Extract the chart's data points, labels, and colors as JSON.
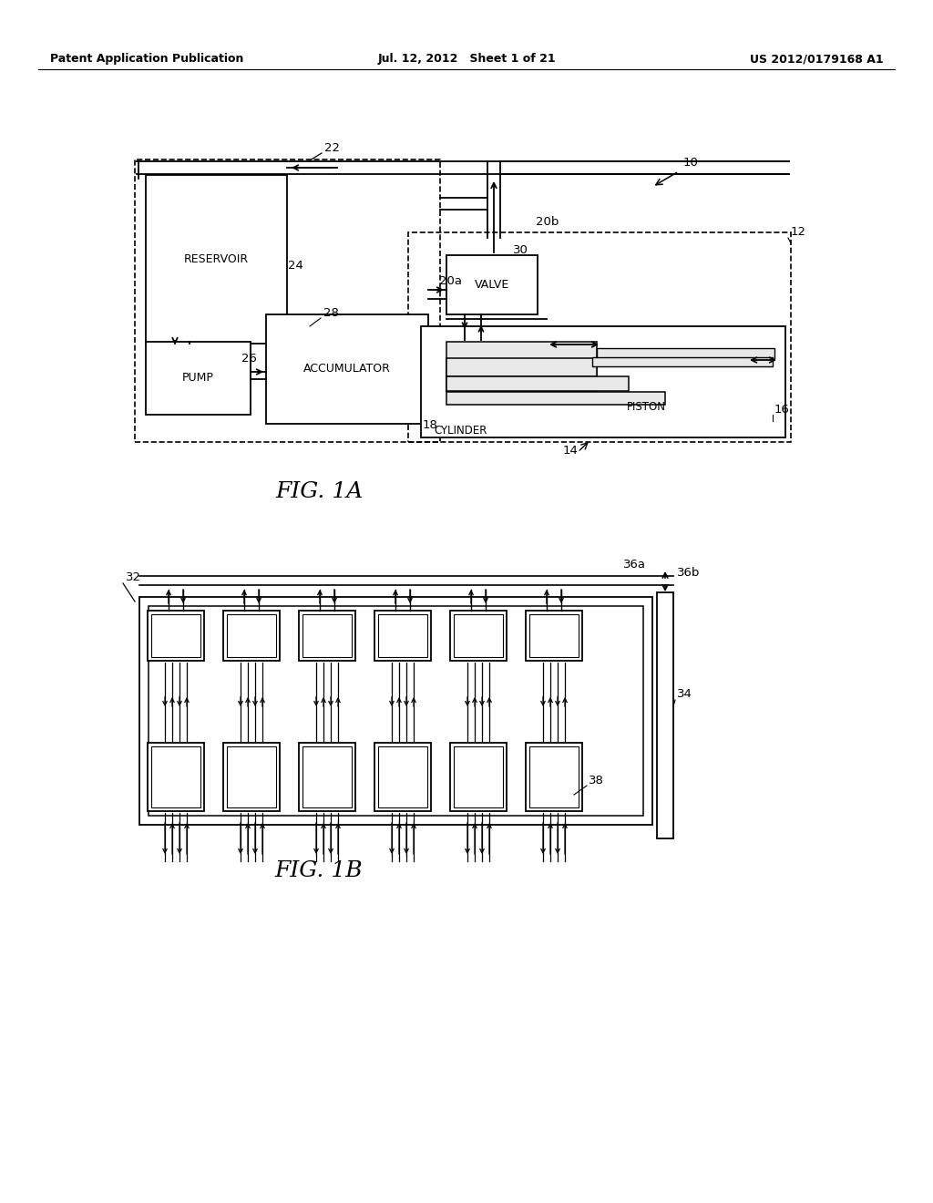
{
  "bg_color": "#ffffff",
  "lc": "#000000",
  "header_left": "Patent Application Publication",
  "header_center": "Jul. 12, 2012   Sheet 1 of 21",
  "header_right": "US 2012/0179168 A1",
  "fig1a": "FIG. 1A",
  "fig1b": "FIG. 1B",
  "lbl": {
    "10": "10",
    "12": "12",
    "14": "14",
    "16": "16",
    "18": "18",
    "20a": "20a",
    "20b": "20b",
    "22": "22",
    "24": "24",
    "26": "26",
    "28": "28",
    "30": "30",
    "32": "32",
    "34": "34",
    "36a": "36a",
    "36b": "36b",
    "38": "38"
  },
  "txt": {
    "reservoir": "RESERVOIR",
    "accumulator": "ACCUMULATOR",
    "pump": "PUMP",
    "valve": "VALVE",
    "cylinder": "CYLINDER",
    "piston": "PISTON"
  }
}
